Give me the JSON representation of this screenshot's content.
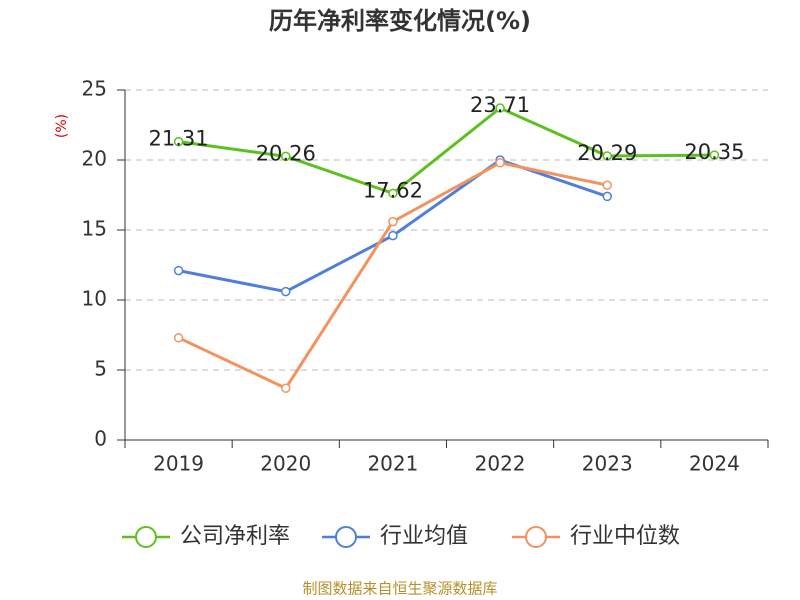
{
  "chart_data": {
    "type": "line",
    "title": "历年净利率变化情况(%)",
    "y_label": "(%)",
    "categories": [
      "2019",
      "2020",
      "2021",
      "2022",
      "2023",
      "2024"
    ],
    "series": [
      {
        "name": "公司净利率",
        "color": "#5cc11f",
        "values": [
          21.31,
          20.26,
          17.62,
          23.71,
          20.29,
          20.35
        ],
        "show_labels": true
      },
      {
        "name": "行业均值",
        "color": "#4e7fdb",
        "values": [
          12.1,
          10.6,
          14.6,
          20.0,
          17.4,
          null
        ]
      },
      {
        "name": "行业中位数",
        "color": "#f4925e",
        "values": [
          7.3,
          3.7,
          15.6,
          19.8,
          18.2,
          null
        ]
      }
    ],
    "ylim": [
      0,
      25
    ],
    "yticks": [
      0,
      5,
      10,
      15,
      20,
      25
    ],
    "grid": true,
    "source": "制图数据来自恒生聚源数据库"
  }
}
